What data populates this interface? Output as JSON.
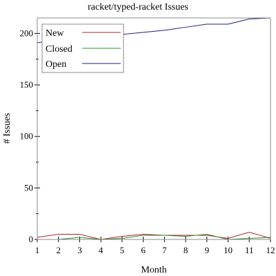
{
  "chart_data": {
    "type": "line",
    "title": "racket/typed-racket Issues",
    "xlabel": "Month",
    "ylabel": "# Issues",
    "x": [
      1,
      2,
      3,
      4,
      5,
      6,
      7,
      8,
      9,
      10,
      11,
      12
    ],
    "x_ticks": [
      "1",
      "2",
      "3",
      "4",
      "5",
      "6",
      "7",
      "8",
      "9",
      "10",
      "11",
      "12"
    ],
    "y_ticks": [
      "0",
      "50",
      "100",
      "150",
      "200"
    ],
    "xlim": [
      1,
      12
    ],
    "ylim": [
      0,
      215
    ],
    "grid": false,
    "legend_position": "top-left",
    "series": [
      {
        "name": "New",
        "color": "#b22222",
        "values": [
          2,
          5,
          5,
          0,
          3,
          5,
          4,
          4,
          4,
          1,
          7,
          1
        ]
      },
      {
        "name": "Closed",
        "color": "#2e8b2e",
        "values": [
          0,
          0,
          2,
          0,
          1,
          4,
          4,
          3,
          5,
          0,
          1,
          2
        ]
      },
      {
        "name": "Open",
        "color": "#1c1c80",
        "values": [
          191,
          194,
          198,
          198,
          199,
          201,
          203,
          206,
          209,
          209,
          214,
          215
        ]
      }
    ]
  }
}
